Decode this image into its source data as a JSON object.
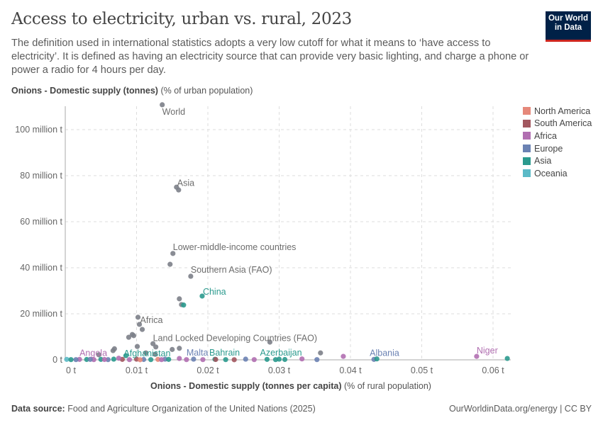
{
  "header": {
    "title": "Access to electricity, urban vs. rural, 2023",
    "subtitle": "The definition used in international statistics adopts a very low cutoff for what it means to ‘have access to electricity’. It is defined as having an electricity source that can provide very basic lighting, and charge a phone or power a radio for 4 hours per day.",
    "logo": "Our World in Data"
  },
  "footer": {
    "source_label": "Data source:",
    "source": "Food and Agriculture Organization of the United Nations (2025)",
    "right": "OurWorldinData.org/energy | CC BY"
  },
  "chart_data": {
    "type": "scatter",
    "title": "Access to electricity, urban vs. rural, 2023",
    "ylabel_bold": "Onions - Domestic supply (tonnes)",
    "ylabel_rest": "(% of urban population)",
    "xlabel_bold": "Onions - Domestic supply (tonnes per capita)",
    "xlabel_rest": "(% of rural population)",
    "xlim": [
      0,
      0.062
    ],
    "ylim": [
      0,
      110000000
    ],
    "xticks": [
      {
        "v": 0,
        "l": "0 t"
      },
      {
        "v": 0.01,
        "l": "0.01 t"
      },
      {
        "v": 0.02,
        "l": "0.02 t"
      },
      {
        "v": 0.03,
        "l": "0.03 t"
      },
      {
        "v": 0.04,
        "l": "0.04 t"
      },
      {
        "v": 0.05,
        "l": "0.05 t"
      },
      {
        "v": 0.06,
        "l": "0.06 t"
      }
    ],
    "yticks": [
      {
        "v": 0,
        "l": "0 t"
      },
      {
        "v": 20000000,
        "l": "20 million t"
      },
      {
        "v": 40000000,
        "l": "40 million t"
      },
      {
        "v": 60000000,
        "l": "60 million t"
      },
      {
        "v": 80000000,
        "l": "80 million t"
      },
      {
        "v": 100000000,
        "l": "100 million t"
      }
    ],
    "grid": true,
    "legend_placement": "right",
    "legend": [
      {
        "name": "North America",
        "color": "#e6887a"
      },
      {
        "name": "South America",
        "color": "#a2575f"
      },
      {
        "name": "Africa",
        "color": "#b16fb1"
      },
      {
        "name": "Europe",
        "color": "#6b82b3"
      },
      {
        "name": "Asia",
        "color": "#2b9a8e"
      },
      {
        "name": "Oceania",
        "color": "#5bbac7"
      }
    ],
    "other_color": "#7c8088",
    "points": [
      {
        "x": 0.0136,
        "y": 110800000,
        "r": "other",
        "label": "World"
      },
      {
        "x": 0.0156,
        "y": 75000000,
        "r": "other",
        "label": "Asia"
      },
      {
        "x": 0.0159,
        "y": 73800000,
        "r": "other"
      },
      {
        "x": 0.0151,
        "y": 46200000,
        "r": "other",
        "label": "Lower-middle-income countries"
      },
      {
        "x": 0.0147,
        "y": 41500000,
        "r": "other"
      },
      {
        "x": 0.0176,
        "y": 36300000,
        "r": "other",
        "label": "Southern Asia (FAO)"
      },
      {
        "x": 0.0192,
        "y": 27700000,
        "r": "Asia",
        "label": "China"
      },
      {
        "x": 0.016,
        "y": 26500000,
        "r": "other"
      },
      {
        "x": 0.0163,
        "y": 24000000,
        "r": "other"
      },
      {
        "x": 0.0166,
        "y": 23800000,
        "r": "Asia"
      },
      {
        "x": 0.0102,
        "y": 18500000,
        "r": "other"
      },
      {
        "x": 0.0104,
        "y": 15400000,
        "r": "other",
        "label": "Africa"
      },
      {
        "x": 0.0108,
        "y": 13200000,
        "r": "other"
      },
      {
        "x": 0.0094,
        "y": 11000000,
        "r": "other"
      },
      {
        "x": 0.0096,
        "y": 10500000,
        "r": "other"
      },
      {
        "x": 0.0089,
        "y": 9800000,
        "r": "other"
      },
      {
        "x": 0.0123,
        "y": 7000000,
        "r": "other",
        "label": "Land Locked Developing Countries (FAO)"
      },
      {
        "x": 0.0127,
        "y": 5600000,
        "r": "other"
      },
      {
        "x": 0.0101,
        "y": 5800000,
        "r": "other"
      },
      {
        "x": 0.0069,
        "y": 4800000,
        "r": "other"
      },
      {
        "x": 0.0067,
        "y": 4000000,
        "r": "other"
      },
      {
        "x": 0.015,
        "y": 4500000,
        "r": "other"
      },
      {
        "x": 0.016,
        "y": 5000000,
        "r": "other"
      },
      {
        "x": 0.0287,
        "y": 7700000,
        "r": "other"
      },
      {
        "x": 0.0358,
        "y": 3000000,
        "r": "other"
      },
      {
        "x": 0.0047,
        "y": 2200000,
        "r": "other"
      },
      {
        "x": 0.0126,
        "y": 2400000,
        "r": "other"
      },
      {
        "x": 0.0113,
        "y": 3000000,
        "r": "other"
      },
      {
        "x": 0.0085,
        "y": 1800000,
        "r": "Asia",
        "label": "Afghanistan"
      },
      {
        "x": 0.002,
        "y": 200000,
        "r": "Africa",
        "label": "Angola"
      },
      {
        "x": 0.018,
        "y": 300000,
        "r": "Europe",
        "label": "Malta"
      },
      {
        "x": 0.021,
        "y": 250000,
        "r": "Asia",
        "label": "Bahrain"
      },
      {
        "x": 0.03,
        "y": 300000,
        "r": "Asia",
        "label": "Azerbaijan"
      },
      {
        "x": 0.0433,
        "y": 200000,
        "r": "Europe",
        "label": "Albania"
      },
      {
        "x": 0.0577,
        "y": 1500000,
        "r": "Africa",
        "label": "Niger"
      },
      {
        "x": 0.062,
        "y": 600000,
        "r": "Asia"
      },
      {
        "x": 0.039,
        "y": 1500000,
        "r": "Africa"
      },
      {
        "x": 0.0353,
        "y": 100000,
        "r": "Europe"
      },
      {
        "x": 0.0437,
        "y": 400000,
        "r": "Asia"
      },
      {
        "x": 0.0332,
        "y": 400000,
        "r": "Africa"
      },
      {
        "x": 0.0237,
        "y": 50000,
        "r": "South America"
      },
      {
        "x": 0.0211,
        "y": 150000,
        "r": "South America"
      },
      {
        "x": 0.0225,
        "y": 100000,
        "r": "Asia"
      },
      {
        "x": 0.0265,
        "y": 100000,
        "r": "Africa"
      },
      {
        "x": 0.0283,
        "y": 200000,
        "r": "Asia"
      },
      {
        "x": 0.0295,
        "y": 100000,
        "r": "Asia"
      },
      {
        "x": 0.0308,
        "y": 150000,
        "r": "Asia"
      },
      {
        "x": 0.0253,
        "y": 300000,
        "r": "Europe"
      },
      {
        "x": 0.0193,
        "y": 100000,
        "r": "Africa"
      },
      {
        "x": 0.017,
        "y": 100000,
        "r": "Africa"
      },
      {
        "x": 0.016,
        "y": 600000,
        "r": "Africa"
      },
      {
        "x": 0.014,
        "y": 300000,
        "r": "Europe"
      },
      {
        "x": 0.013,
        "y": 200000,
        "r": "North America"
      },
      {
        "x": 0.012,
        "y": 100000,
        "r": "Asia"
      },
      {
        "x": 0.011,
        "y": 150000,
        "r": "Europe"
      },
      {
        "x": 0.01,
        "y": 300000,
        "r": "South America"
      },
      {
        "x": 0.009,
        "y": 100000,
        "r": "Africa"
      },
      {
        "x": 0.008,
        "y": 200000,
        "r": "South America"
      },
      {
        "x": 0.0075,
        "y": 700000,
        "r": "Africa"
      },
      {
        "x": 0.0068,
        "y": 300000,
        "r": "Asia"
      },
      {
        "x": 0.006,
        "y": 100000,
        "r": "Europe"
      },
      {
        "x": 0.005,
        "y": 200000,
        "r": "Asia"
      },
      {
        "x": 0.004,
        "y": 100000,
        "r": "Africa"
      },
      {
        "x": 0.003,
        "y": 150000,
        "r": "Asia"
      },
      {
        "x": 0.0015,
        "y": 100000,
        "r": "Europe"
      },
      {
        "x": 0.0002,
        "y": 200000,
        "r": "Oceania"
      },
      {
        "x": 0.0008,
        "y": 100000,
        "r": "Asia"
      },
      {
        "x": 0.0035,
        "y": 200000,
        "r": "Europe"
      },
      {
        "x": 0.0055,
        "y": 150000,
        "r": "Africa"
      },
      {
        "x": 0.0145,
        "y": 200000,
        "r": "Asia"
      },
      {
        "x": 0.0135,
        "y": 100000,
        "r": "Africa"
      },
      {
        "x": 0.0105,
        "y": 50000,
        "r": "North America"
      }
    ]
  }
}
